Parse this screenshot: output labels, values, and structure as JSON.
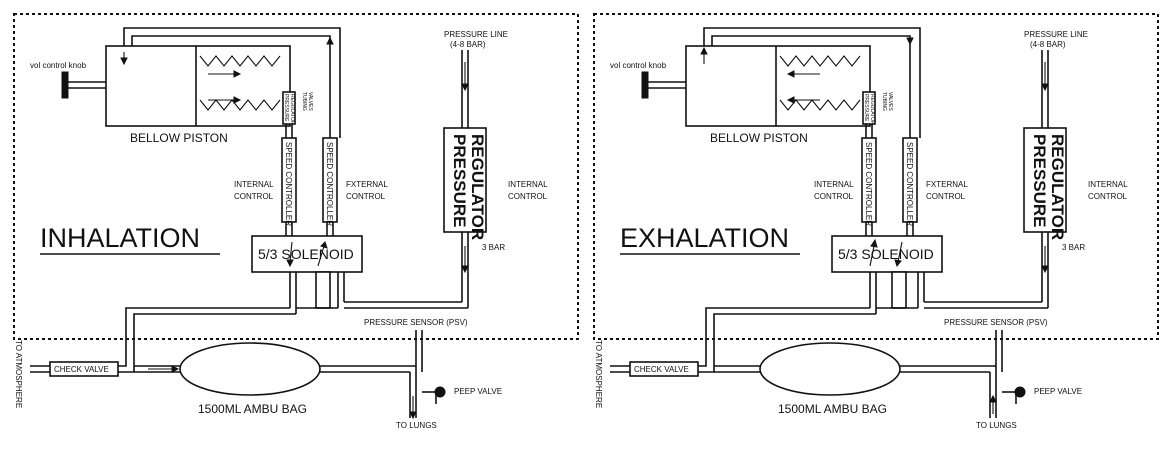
{
  "panels": [
    {
      "id": "inhalation",
      "title": "INHALATION",
      "vol_control_knob": "vol control knob",
      "bellow_piston": "BELLOW PISTON",
      "pressure_regulator_small": [
        "PRESSURE",
        "REGULATOR"
      ],
      "tubing_valves": [
        "TUBING",
        "VALVES"
      ],
      "speed_controller_internal": "SPEED CONTROLLER",
      "speed_controller_external": "SPEED CONTROLLER",
      "internal_control": [
        "INTERNAL",
        "CONTROL"
      ],
      "external_control": [
        "FXTERNAL",
        "CONTROL"
      ],
      "pressure_line": [
        "PRESSURE LINE",
        "(4-8 BAR)"
      ],
      "pressure_regulator": [
        "PRESSURE",
        "REGULATOR"
      ],
      "internal_control_right": [
        "INTERNAL",
        "CONTROL"
      ],
      "bar_label": "3 BAR",
      "solenoid": "5/3 SOLENOID",
      "pressure_sensor": "PRESSURE SENSOR (PSV)",
      "to_atmosphere": "TO ATMOSPHERE",
      "check_valve": "CHECK VALVE",
      "ambu_bag": "1500ML AMBU BAG",
      "peep_valve": "PEEP VALVE",
      "to_lungs": "TO LUNGS"
    },
    {
      "id": "exhalation",
      "title": "EXHALATION",
      "vol_control_knob": "vol control knob",
      "bellow_piston": "BELLOW PISTON",
      "pressure_regulator_small": [
        "PRESSURE",
        "REGULATOR"
      ],
      "tubing_valves": [
        "TUBING",
        "VALVES"
      ],
      "speed_controller_internal": "SPEED CONTROLLER",
      "speed_controller_external": "SPEED CONTROLLER",
      "internal_control": [
        "INTERNAL",
        "CONTROL"
      ],
      "external_control": [
        "FXTERNAL",
        "CONTROL"
      ],
      "pressure_line": [
        "PRESSURE LINE",
        "(4-8 BAR)"
      ],
      "pressure_regulator": [
        "PRESSURE",
        "REGULATOR"
      ],
      "internal_control_right": [
        "INTERNAL",
        "CONTROL"
      ],
      "bar_label": "3 BAR",
      "solenoid": "5/3 SOLENOID",
      "pressure_sensor": "PRESSURE SENSOR (PSV)",
      "to_atmosphere": "TO ATMOSPHERE",
      "check_valve": "CHECK VALVE",
      "ambu_bag": "1500ML AMBU BAG",
      "peep_valve": "PEEP VALVE",
      "to_lungs": "TO LUNGS"
    }
  ],
  "flow_direction": [
    "right",
    "left"
  ],
  "colors": {
    "ink": "#111111",
    "background": "#ffffff"
  }
}
